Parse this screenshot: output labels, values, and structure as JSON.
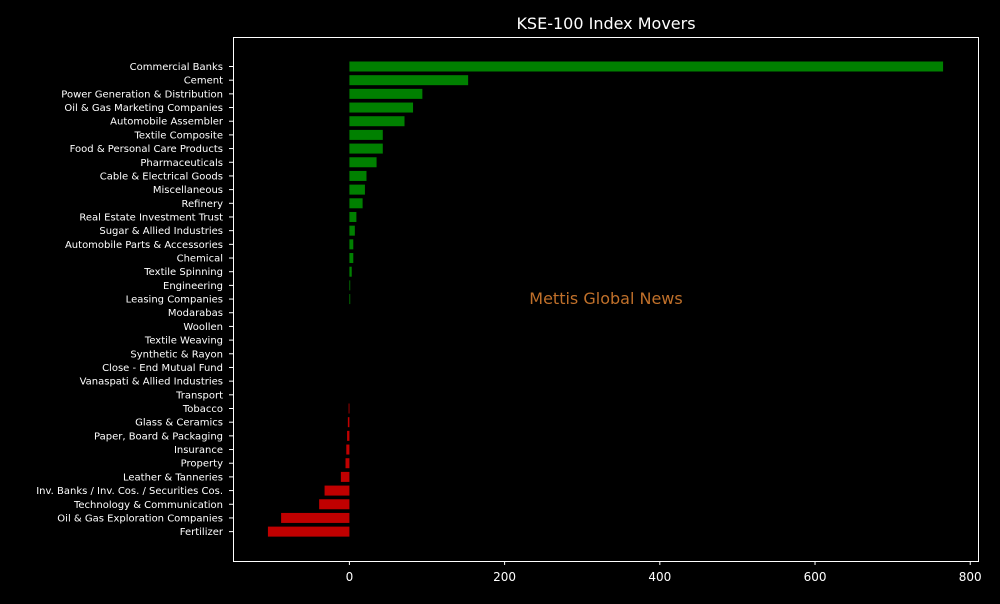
{
  "chart_data": {
    "type": "bar",
    "orientation": "horizontal",
    "title": "KSE-100 Index Movers",
    "xlabel": "",
    "ylabel": "",
    "watermark": "Mettis Global News",
    "xlim": [
      -150,
      810
    ],
    "xticks": [
      0,
      200,
      400,
      600,
      800
    ],
    "grid": false,
    "legend": "none",
    "colors": {
      "background": "#000000",
      "frame": "#ffffff",
      "text": "#ffffff",
      "positive": "#008000",
      "negative": "#c00000",
      "watermark": "#c0702a"
    },
    "categories": [
      "Commercial Banks",
      "Cement",
      "Power Generation & Distribution",
      "Oil & Gas Marketing Companies",
      "Automobile Assembler",
      "Textile Composite",
      "Food & Personal Care Products",
      "Pharmaceuticals",
      "Cable & Electrical Goods",
      "Miscellaneous",
      "Refinery",
      "Real Estate Investment Trust",
      "Sugar & Allied Industries",
      "Automobile Parts & Accessories",
      "Chemical",
      "Textile Spinning",
      "Engineering",
      "Leasing Companies",
      "Modarabas",
      "Woollen",
      "Textile Weaving",
      "Synthetic & Rayon",
      "Close - End Mutual Fund",
      "Vanaspati & Allied Industries",
      "Transport",
      "Tobacco",
      "Glass & Ceramics",
      "Paper, Board & Packaging",
      "Insurance",
      "Property",
      "Leather & Tanneries",
      "Inv. Banks / Inv. Cos. / Securities Cos.",
      "Technology & Communication",
      "Oil & Gas Exploration Companies",
      "Fertilizer"
    ],
    "values": [
      765,
      153,
      94,
      82,
      71,
      43,
      43,
      35,
      22,
      20,
      17,
      9,
      7,
      5,
      5,
      3,
      1,
      1,
      0,
      0,
      0,
      0,
      0,
      0,
      0,
      -1,
      -2,
      -3,
      -4,
      -5,
      -11,
      -32,
      -39,
      -88,
      -105
    ]
  }
}
